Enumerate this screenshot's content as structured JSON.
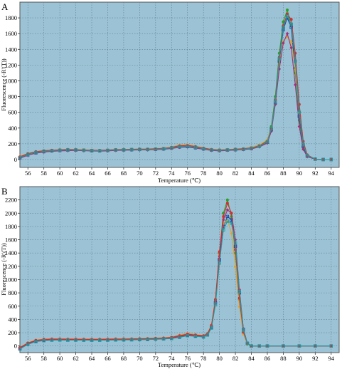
{
  "chart_data": [
    {
      "type": "line",
      "panel_label": "A",
      "xlabel": "Temperature (℃)",
      "ylabel": "Fluorescence (-R'(T))",
      "xlim": [
        55,
        95
      ],
      "ylim": [
        -100,
        2000
      ],
      "xticks": [
        56,
        58,
        60,
        62,
        64,
        66,
        68,
        70,
        72,
        74,
        76,
        78,
        80,
        82,
        84,
        86,
        88,
        90,
        92,
        94
      ],
      "yticks": [
        0,
        200,
        400,
        600,
        800,
        1000,
        1200,
        1400,
        1600,
        1800
      ],
      "grid": true,
      "background": "#9cc3d5",
      "x": [
        55.0,
        56.0,
        57.0,
        58.0,
        59.0,
        60.0,
        61.0,
        62.0,
        63.0,
        64.0,
        65.0,
        66.0,
        67.0,
        68.0,
        69.0,
        70.0,
        71.0,
        72.0,
        73.0,
        74.0,
        75.0,
        76.0,
        77.0,
        78.0,
        79.0,
        80.0,
        81.0,
        82.0,
        83.0,
        84.0,
        85.0,
        86.0,
        86.5,
        87.0,
        87.5,
        88.0,
        88.5,
        89.0,
        89.5,
        90.0,
        90.5,
        91.0,
        92.0,
        93.0,
        94.0
      ],
      "series": [
        {
          "values": [
            30,
            70,
            95,
            110,
            115,
            120,
            125,
            125,
            120,
            115,
            115,
            120,
            125,
            125,
            130,
            130,
            130,
            135,
            140,
            150,
            170,
            175,
            160,
            140,
            125,
            120,
            125,
            130,
            135,
            150,
            180,
            240,
            420,
            800,
            1350,
            1750,
            1900,
            1700,
            1100,
            500,
            150,
            40,
            5,
            0,
            0
          ]
        },
        {
          "values": [
            20,
            60,
            85,
            100,
            110,
            115,
            120,
            120,
            118,
            112,
            110,
            115,
            120,
            122,
            125,
            128,
            128,
            130,
            135,
            145,
            160,
            165,
            150,
            135,
            120,
            115,
            120,
            125,
            130,
            140,
            170,
            220,
            380,
            720,
            1250,
            1650,
            1800,
            1680,
            1150,
            550,
            170,
            45,
            5,
            0,
            0
          ]
        },
        {
          "values": [
            40,
            80,
            100,
            115,
            120,
            125,
            130,
            128,
            125,
            120,
            118,
            122,
            128,
            130,
            132,
            135,
            135,
            140,
            145,
            160,
            185,
            190,
            170,
            150,
            130,
            125,
            128,
            135,
            140,
            155,
            185,
            250,
            400,
            740,
            1200,
            1500,
            1560,
            1500,
            1150,
            600,
            200,
            50,
            5,
            0,
            0
          ]
        },
        {
          "values": [
            15,
            55,
            80,
            95,
            105,
            110,
            112,
            115,
            112,
            108,
            106,
            110,
            115,
            118,
            120,
            122,
            122,
            125,
            130,
            140,
            155,
            158,
            145,
            130,
            115,
            110,
            115,
            120,
            125,
            135,
            160,
            210,
            360,
            700,
            1150,
            1480,
            1600,
            1420,
            950,
            420,
            130,
            35,
            5,
            0,
            0
          ]
        },
        {
          "values": [
            35,
            75,
            100,
            112,
            118,
            124,
            128,
            126,
            122,
            118,
            116,
            121,
            126,
            128,
            131,
            133,
            133,
            137,
            142,
            155,
            175,
            180,
            165,
            145,
            128,
            122,
            126,
            132,
            137,
            148,
            175,
            230,
            395,
            760,
            1300,
            1700,
            1850,
            1780,
            1350,
            700,
            230,
            60,
            5,
            0,
            0
          ]
        },
        {
          "values": [
            25,
            65,
            90,
            105,
            112,
            118,
            122,
            122,
            118,
            114,
            112,
            117,
            122,
            124,
            127,
            129,
            129,
            132,
            137,
            148,
            165,
            170,
            155,
            138,
            122,
            117,
            122,
            127,
            132,
            144,
            168,
            225,
            390,
            740,
            1280,
            1680,
            1820,
            1720,
            1250,
            600,
            190,
            50,
            5,
            0,
            0
          ]
        }
      ]
    },
    {
      "type": "line",
      "panel_label": "B",
      "xlabel": "Temperature (℃)",
      "ylabel": "Fluorescence (-R'(T))",
      "xlim": [
        55,
        95
      ],
      "ylim": [
        -100,
        2400
      ],
      "xticks": [
        56,
        58,
        60,
        62,
        64,
        66,
        68,
        70,
        72,
        74,
        76,
        78,
        80,
        82,
        84,
        86,
        88,
        90,
        92,
        94
      ],
      "yticks": [
        0,
        200,
        400,
        600,
        800,
        1000,
        1200,
        1400,
        1600,
        1800,
        2000,
        2200
      ],
      "grid": true,
      "background": "#9cc3d5",
      "x": [
        55.0,
        56.0,
        57.0,
        58.0,
        59.0,
        60.0,
        61.0,
        62.0,
        63.0,
        64.0,
        65.0,
        66.0,
        67.0,
        68.0,
        69.0,
        70.0,
        71.0,
        72.0,
        73.0,
        74.0,
        75.0,
        76.0,
        77.0,
        78.0,
        78.5,
        79.0,
        79.5,
        80.0,
        80.5,
        81.0,
        81.5,
        82.0,
        82.5,
        83.0,
        83.5,
        84.0,
        85.0,
        86.0,
        88.0,
        90.0,
        92.0,
        94.0
      ],
      "series": [
        {
          "values": [
            -30,
            40,
            80,
            95,
            100,
            100,
            98,
            97,
            96,
            96,
            96,
            98,
            100,
            100,
            102,
            104,
            106,
            110,
            115,
            125,
            150,
            175,
            160,
            150,
            180,
            300,
            700,
            1400,
            2000,
            2200,
            1950,
            1400,
            700,
            200,
            30,
            0,
            0,
            0,
            0,
            0,
            0,
            0
          ]
        },
        {
          "values": [
            -40,
            30,
            70,
            85,
            90,
            92,
            90,
            90,
            89,
            89,
            89,
            90,
            92,
            93,
            95,
            97,
            99,
            103,
            108,
            115,
            135,
            160,
            150,
            140,
            170,
            280,
            650,
            1300,
            1800,
            1950,
            1900,
            1500,
            800,
            250,
            40,
            0,
            0,
            0,
            0,
            0,
            0,
            0
          ]
        },
        {
          "values": [
            -20,
            50,
            90,
            105,
            110,
            110,
            108,
            107,
            106,
            106,
            106,
            108,
            110,
            110,
            112,
            114,
            116,
            120,
            125,
            135,
            165,
            190,
            175,
            160,
            190,
            320,
            720,
            1380,
            1850,
            1900,
            1700,
            1200,
            600,
            180,
            30,
            0,
            0,
            0,
            0,
            0,
            0,
            0
          ]
        },
        {
          "values": [
            -35,
            35,
            75,
            90,
            95,
            96,
            94,
            93,
            92,
            92,
            92,
            94,
            96,
            97,
            99,
            101,
            103,
            106,
            111,
            120,
            140,
            165,
            155,
            145,
            175,
            290,
            680,
            1350,
            1900,
            2050,
            2000,
            1600,
            850,
            260,
            40,
            0,
            0,
            0,
            0,
            0,
            0,
            0
          ]
        },
        {
          "values": [
            -25,
            45,
            85,
            100,
            105,
            105,
            103,
            102,
            101,
            101,
            101,
            103,
            105,
            105,
            107,
            109,
            111,
            115,
            120,
            130,
            155,
            180,
            165,
            155,
            185,
            310,
            700,
            1420,
            1950,
            2150,
            2000,
            1450,
            720,
            210,
            35,
            0,
            0,
            0,
            0,
            0,
            0,
            0
          ]
        },
        {
          "values": [
            -45,
            25,
            65,
            80,
            88,
            90,
            88,
            88,
            87,
            87,
            87,
            88,
            90,
            91,
            93,
            95,
            97,
            101,
            106,
            112,
            130,
            155,
            145,
            135,
            165,
            270,
            620,
            1250,
            1750,
            1880,
            1850,
            1550,
            820,
            240,
            40,
            0,
            0,
            0,
            0,
            0,
            0,
            0
          ]
        }
      ]
    }
  ],
  "series_colors": [
    "#2aa02a",
    "#1f3faa",
    "#e2a02a",
    "#a0307a",
    "#d03030",
    "#209aa0"
  ]
}
